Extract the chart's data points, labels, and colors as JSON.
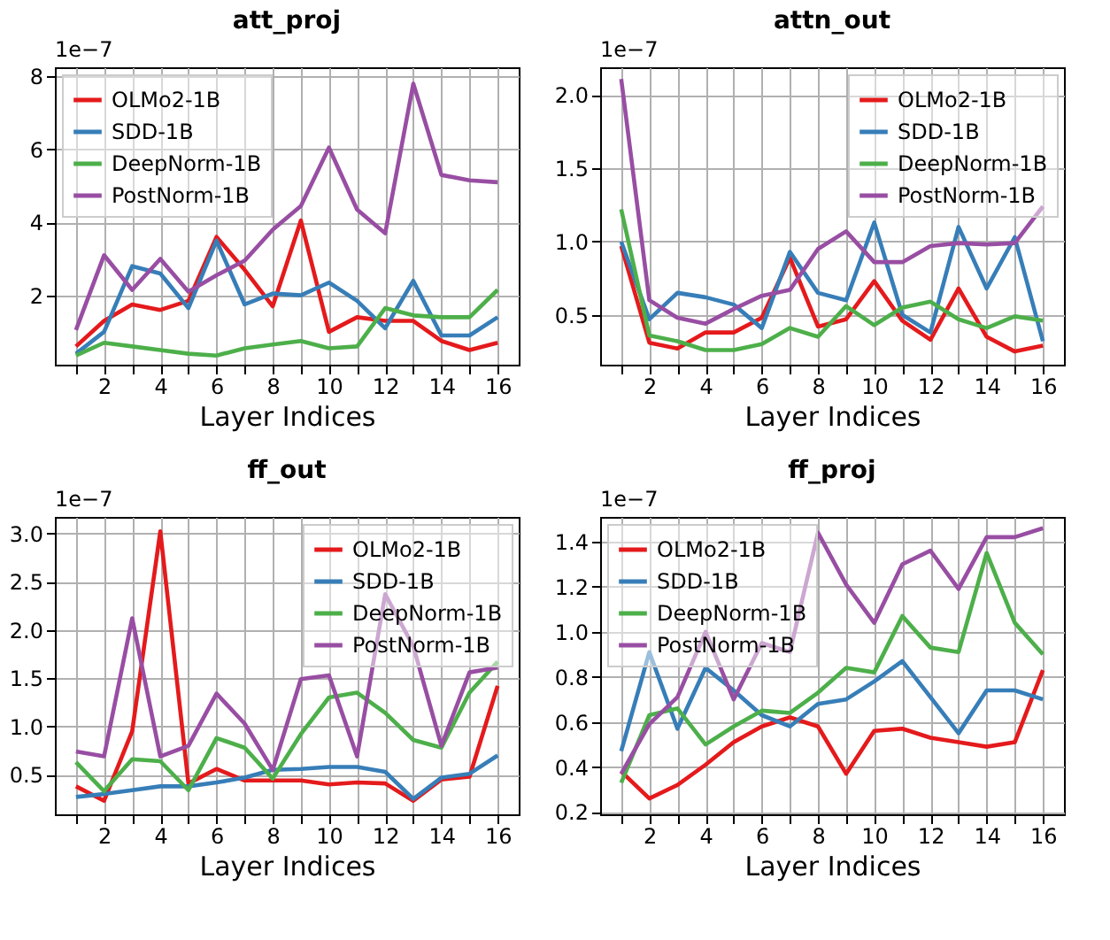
{
  "chart_data": [
    {
      "type": "line",
      "title": "att_proj",
      "xlabel": "Layer Indices",
      "annotations": [
        "1e−7"
      ],
      "legend": "top left",
      "grid": true,
      "x": [
        1,
        2,
        3,
        4,
        5,
        6,
        7,
        8,
        9,
        10,
        11,
        12,
        13,
        14,
        15,
        16
      ],
      "xlim": [
        0.25,
        16.75
      ],
      "xticks": [
        {
          "value": 1,
          "label": null
        },
        2,
        {
          "value": 3,
          "label": null
        },
        4,
        {
          "value": 5,
          "label": null
        },
        6,
        {
          "value": 7,
          "label": null
        },
        8,
        {
          "value": 9,
          "label": null
        },
        10,
        {
          "value": 11,
          "label": null
        },
        12,
        {
          "value": 13,
          "label": null
        },
        14,
        {
          "value": 15,
          "label": null
        },
        16
      ],
      "ylim": [
        0.1,
        8.25
      ],
      "yticks": [
        2,
        4,
        6,
        8
      ],
      "series": [
        {
          "name": "OLMo2-1B",
          "color": "#e41a1c",
          "values": [
            0.6,
            1.3,
            1.75,
            1.6,
            1.85,
            3.6,
            2.7,
            1.7,
            4.05,
            1.0,
            1.4,
            1.3,
            1.3,
            0.75,
            0.5,
            0.7
          ]
        },
        {
          "name": "SDD-1B",
          "color": "#377eb8",
          "values": [
            0.4,
            1.0,
            2.8,
            2.6,
            1.65,
            3.5,
            1.75,
            2.05,
            2.0,
            2.35,
            1.85,
            1.1,
            2.4,
            0.9,
            0.9,
            1.4
          ]
        },
        {
          "name": "DeepNorm-1B",
          "color": "#4daf4a",
          "values": [
            0.35,
            0.7,
            0.6,
            0.5,
            0.4,
            0.35,
            0.55,
            0.65,
            0.75,
            0.55,
            0.6,
            1.65,
            1.45,
            1.4,
            1.4,
            2.15
          ]
        },
        {
          "name": "PostNorm-1B",
          "color": "#984ea3",
          "values": [
            1.05,
            3.1,
            2.15,
            3.0,
            2.1,
            2.55,
            2.95,
            3.8,
            4.45,
            6.05,
            4.35,
            3.7,
            7.8,
            5.3,
            5.15,
            5.1
          ]
        }
      ]
    },
    {
      "type": "line",
      "title": "attn_out",
      "xlabel": "Layer Indices",
      "annotations": [
        "1e−7"
      ],
      "legend": "top right",
      "grid": true,
      "x": [
        1,
        2,
        3,
        4,
        5,
        6,
        7,
        8,
        9,
        10,
        11,
        12,
        13,
        14,
        15,
        16
      ],
      "xlim": [
        0.25,
        16.75
      ],
      "xticks": [
        {
          "value": 1,
          "label": null
        },
        2,
        {
          "value": 3,
          "label": null
        },
        4,
        {
          "value": 5,
          "label": null
        },
        6,
        {
          "value": 7,
          "label": null
        },
        8,
        {
          "value": 9,
          "label": null
        },
        10,
        {
          "value": 11,
          "label": null
        },
        12,
        {
          "value": 13,
          "label": null
        },
        14,
        {
          "value": 15,
          "label": null
        },
        16
      ],
      "ylim": [
        0.16,
        2.19
      ],
      "yticks": [
        0.5,
        {
          "value": 1,
          "label": "1.0"
        },
        1.5,
        {
          "value": 2,
          "label": "2.0"
        }
      ],
      "series": [
        {
          "name": "OLMo2-1B",
          "color": "#e41a1c",
          "values": [
            0.97,
            0.31,
            0.27,
            0.38,
            0.38,
            0.48,
            0.89,
            0.42,
            0.47,
            0.73,
            0.46,
            0.33,
            0.68,
            0.35,
            0.25,
            0.29
          ]
        },
        {
          "name": "SDD-1B",
          "color": "#377eb8",
          "values": [
            1.0,
            0.47,
            0.65,
            0.62,
            0.57,
            0.41,
            0.93,
            0.65,
            0.6,
            1.13,
            0.5,
            0.38,
            1.1,
            0.68,
            1.03,
            0.32
          ]
        },
        {
          "name": "DeepNorm-1B",
          "color": "#4daf4a",
          "values": [
            1.22,
            0.36,
            0.32,
            0.26,
            0.26,
            0.3,
            0.41,
            0.35,
            0.56,
            0.43,
            0.55,
            0.59,
            0.47,
            0.41,
            0.49,
            0.46
          ]
        },
        {
          "name": "PostNorm-1B",
          "color": "#984ea3",
          "values": [
            2.11,
            0.6,
            0.48,
            0.44,
            0.54,
            0.63,
            0.67,
            0.95,
            1.07,
            0.86,
            0.86,
            0.97,
            0.99,
            0.98,
            0.99,
            1.24
          ]
        }
      ]
    },
    {
      "type": "line",
      "title": "ff_out",
      "xlabel": "Layer Indices",
      "annotations": [
        "1e−7"
      ],
      "legend": "top right",
      "grid": true,
      "x": [
        1,
        2,
        3,
        4,
        5,
        6,
        7,
        8,
        9,
        10,
        11,
        12,
        13,
        14,
        15,
        16
      ],
      "xlim": [
        0.25,
        16.75
      ],
      "xticks": [
        {
          "value": 1,
          "label": null
        },
        2,
        {
          "value": 3,
          "label": null
        },
        4,
        {
          "value": 5,
          "label": null
        },
        6,
        {
          "value": 7,
          "label": null
        },
        8,
        {
          "value": 9,
          "label": null
        },
        10,
        {
          "value": 11,
          "label": null
        },
        12,
        {
          "value": 13,
          "label": null
        },
        14,
        {
          "value": 15,
          "label": null
        },
        16
      ],
      "ylim": [
        0.09,
        3.17
      ],
      "yticks": [
        0.5,
        {
          "value": 1,
          "label": "1.0"
        },
        1.5,
        {
          "value": 2,
          "label": "2.0"
        },
        2.5,
        {
          "value": 3,
          "label": "3.0"
        }
      ],
      "series": [
        {
          "name": "OLMo2-1B",
          "color": "#e41a1c",
          "values": [
            0.38,
            0.23,
            0.95,
            3.02,
            0.41,
            0.56,
            0.44,
            0.44,
            0.44,
            0.4,
            0.42,
            0.41,
            0.23,
            0.45,
            0.48,
            1.42
          ]
        },
        {
          "name": "SDD-1B",
          "color": "#377eb8",
          "values": [
            0.27,
            0.3,
            0.34,
            0.38,
            0.38,
            0.42,
            0.47,
            0.55,
            0.56,
            0.58,
            0.58,
            0.53,
            0.25,
            0.47,
            0.51,
            0.7
          ]
        },
        {
          "name": "DeepNorm-1B",
          "color": "#4daf4a",
          "values": [
            0.63,
            0.33,
            0.66,
            0.64,
            0.34,
            0.88,
            0.78,
            0.46,
            0.92,
            1.3,
            1.35,
            1.14,
            0.86,
            0.78,
            1.35,
            1.67
          ]
        },
        {
          "name": "PostNorm-1B",
          "color": "#984ea3",
          "values": [
            0.74,
            0.69,
            2.12,
            0.69,
            0.8,
            1.34,
            1.03,
            0.55,
            1.49,
            1.53,
            0.69,
            2.37,
            1.83,
            0.8,
            1.56,
            1.61
          ]
        }
      ]
    },
    {
      "type": "line",
      "title": "ff_proj",
      "xlabel": "Layer Indices",
      "annotations": [
        "1e−7"
      ],
      "legend": "top left",
      "grid": true,
      "x": [
        1,
        2,
        3,
        4,
        5,
        6,
        7,
        8,
        9,
        10,
        11,
        12,
        13,
        14,
        15,
        16
      ],
      "xlim": [
        0.25,
        16.75
      ],
      "xticks": [
        {
          "value": 1,
          "label": null
        },
        2,
        {
          "value": 3,
          "label": null
        },
        4,
        {
          "value": 5,
          "label": null
        },
        6,
        {
          "value": 7,
          "label": null
        },
        8,
        {
          "value": 9,
          "label": null
        },
        10,
        {
          "value": 11,
          "label": null
        },
        12,
        {
          "value": 13,
          "label": null
        },
        14,
        {
          "value": 15,
          "label": null
        },
        16
      ],
      "ylim": [
        0.19,
        1.51
      ],
      "yticks": [
        0.2,
        0.4,
        0.6,
        0.8,
        {
          "value": 1,
          "label": "1.0"
        },
        1.2,
        1.4
      ],
      "series": [
        {
          "name": "OLMo2-1B",
          "color": "#e41a1c",
          "values": [
            0.38,
            0.26,
            0.32,
            0.41,
            0.51,
            0.58,
            0.62,
            0.58,
            0.37,
            0.56,
            0.57,
            0.53,
            0.51,
            0.49,
            0.51,
            0.83
          ]
        },
        {
          "name": "SDD-1B",
          "color": "#377eb8",
          "values": [
            0.47,
            0.91,
            0.57,
            0.84,
            0.74,
            0.63,
            0.58,
            0.68,
            0.7,
            0.78,
            0.87,
            0.71,
            0.55,
            0.74,
            0.74,
            0.7
          ]
        },
        {
          "name": "DeepNorm-1B",
          "color": "#4daf4a",
          "values": [
            0.33,
            0.63,
            0.66,
            0.5,
            0.58,
            0.65,
            0.64,
            0.73,
            0.84,
            0.82,
            1.07,
            0.93,
            0.91,
            1.35,
            1.04,
            0.9
          ]
        },
        {
          "name": "PostNorm-1B",
          "color": "#984ea3",
          "values": [
            0.37,
            0.59,
            0.71,
            1.0,
            0.7,
            0.95,
            0.91,
            1.44,
            1.21,
            1.04,
            1.3,
            1.36,
            1.19,
            1.42,
            1.42,
            1.46
          ]
        }
      ]
    }
  ]
}
